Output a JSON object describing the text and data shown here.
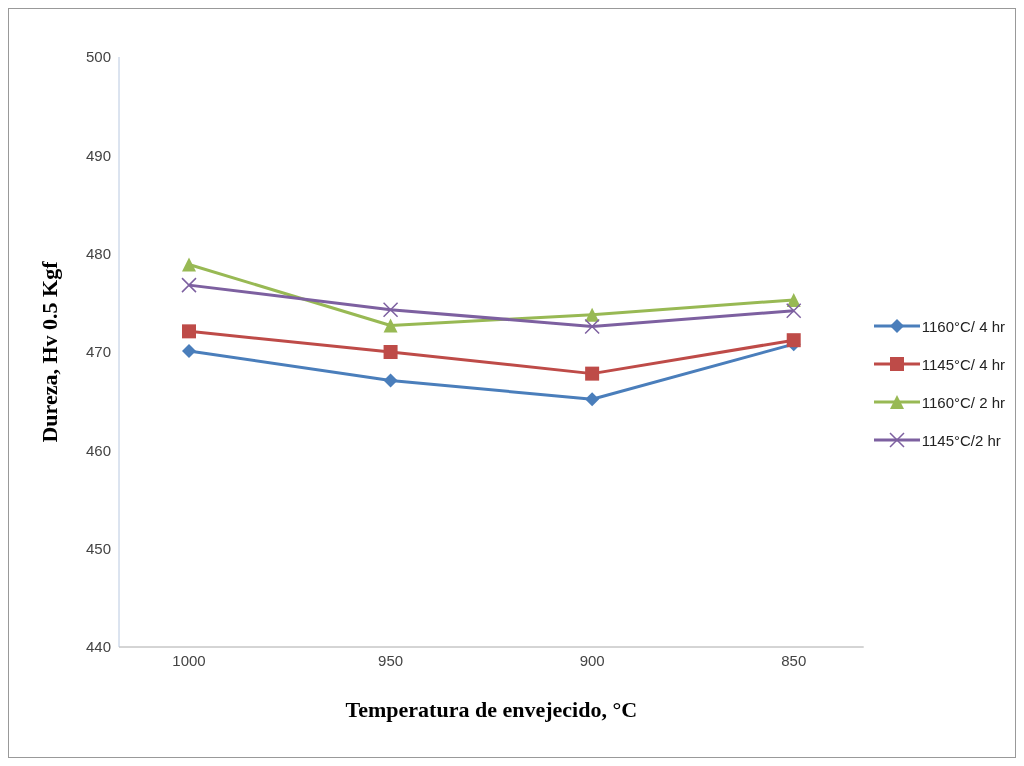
{
  "chart_data": {
    "type": "line",
    "xlabel": "Temperatura de envejecido, °C",
    "ylabel": "Dureza, Hv 0.5 Kgf",
    "categories": [
      "1000",
      "950",
      "900",
      "850"
    ],
    "series": [
      {
        "name": "1160°C/ 4 hr",
        "color": "#4a7ebb",
        "marker": "diamond",
        "values": [
          470.1,
          467.1,
          465.2,
          470.8
        ]
      },
      {
        "name": "1145°C/ 4 hr",
        "color": "#be4b48",
        "marker": "square",
        "values": [
          472.1,
          470.0,
          467.8,
          471.2
        ]
      },
      {
        "name": "1160°C/ 2 hr",
        "color": "#98b954",
        "marker": "triangle",
        "values": [
          478.9,
          472.7,
          473.8,
          475.3
        ]
      },
      {
        "name": "1145°C/2 hr",
        "color": "#7d60a0",
        "marker": "cross",
        "values": [
          476.8,
          474.3,
          472.6,
          474.2
        ]
      }
    ],
    "ylim": [
      440,
      500
    ],
    "yticks": [
      440,
      450,
      460,
      470,
      480,
      490,
      500
    ],
    "legend": "right"
  }
}
